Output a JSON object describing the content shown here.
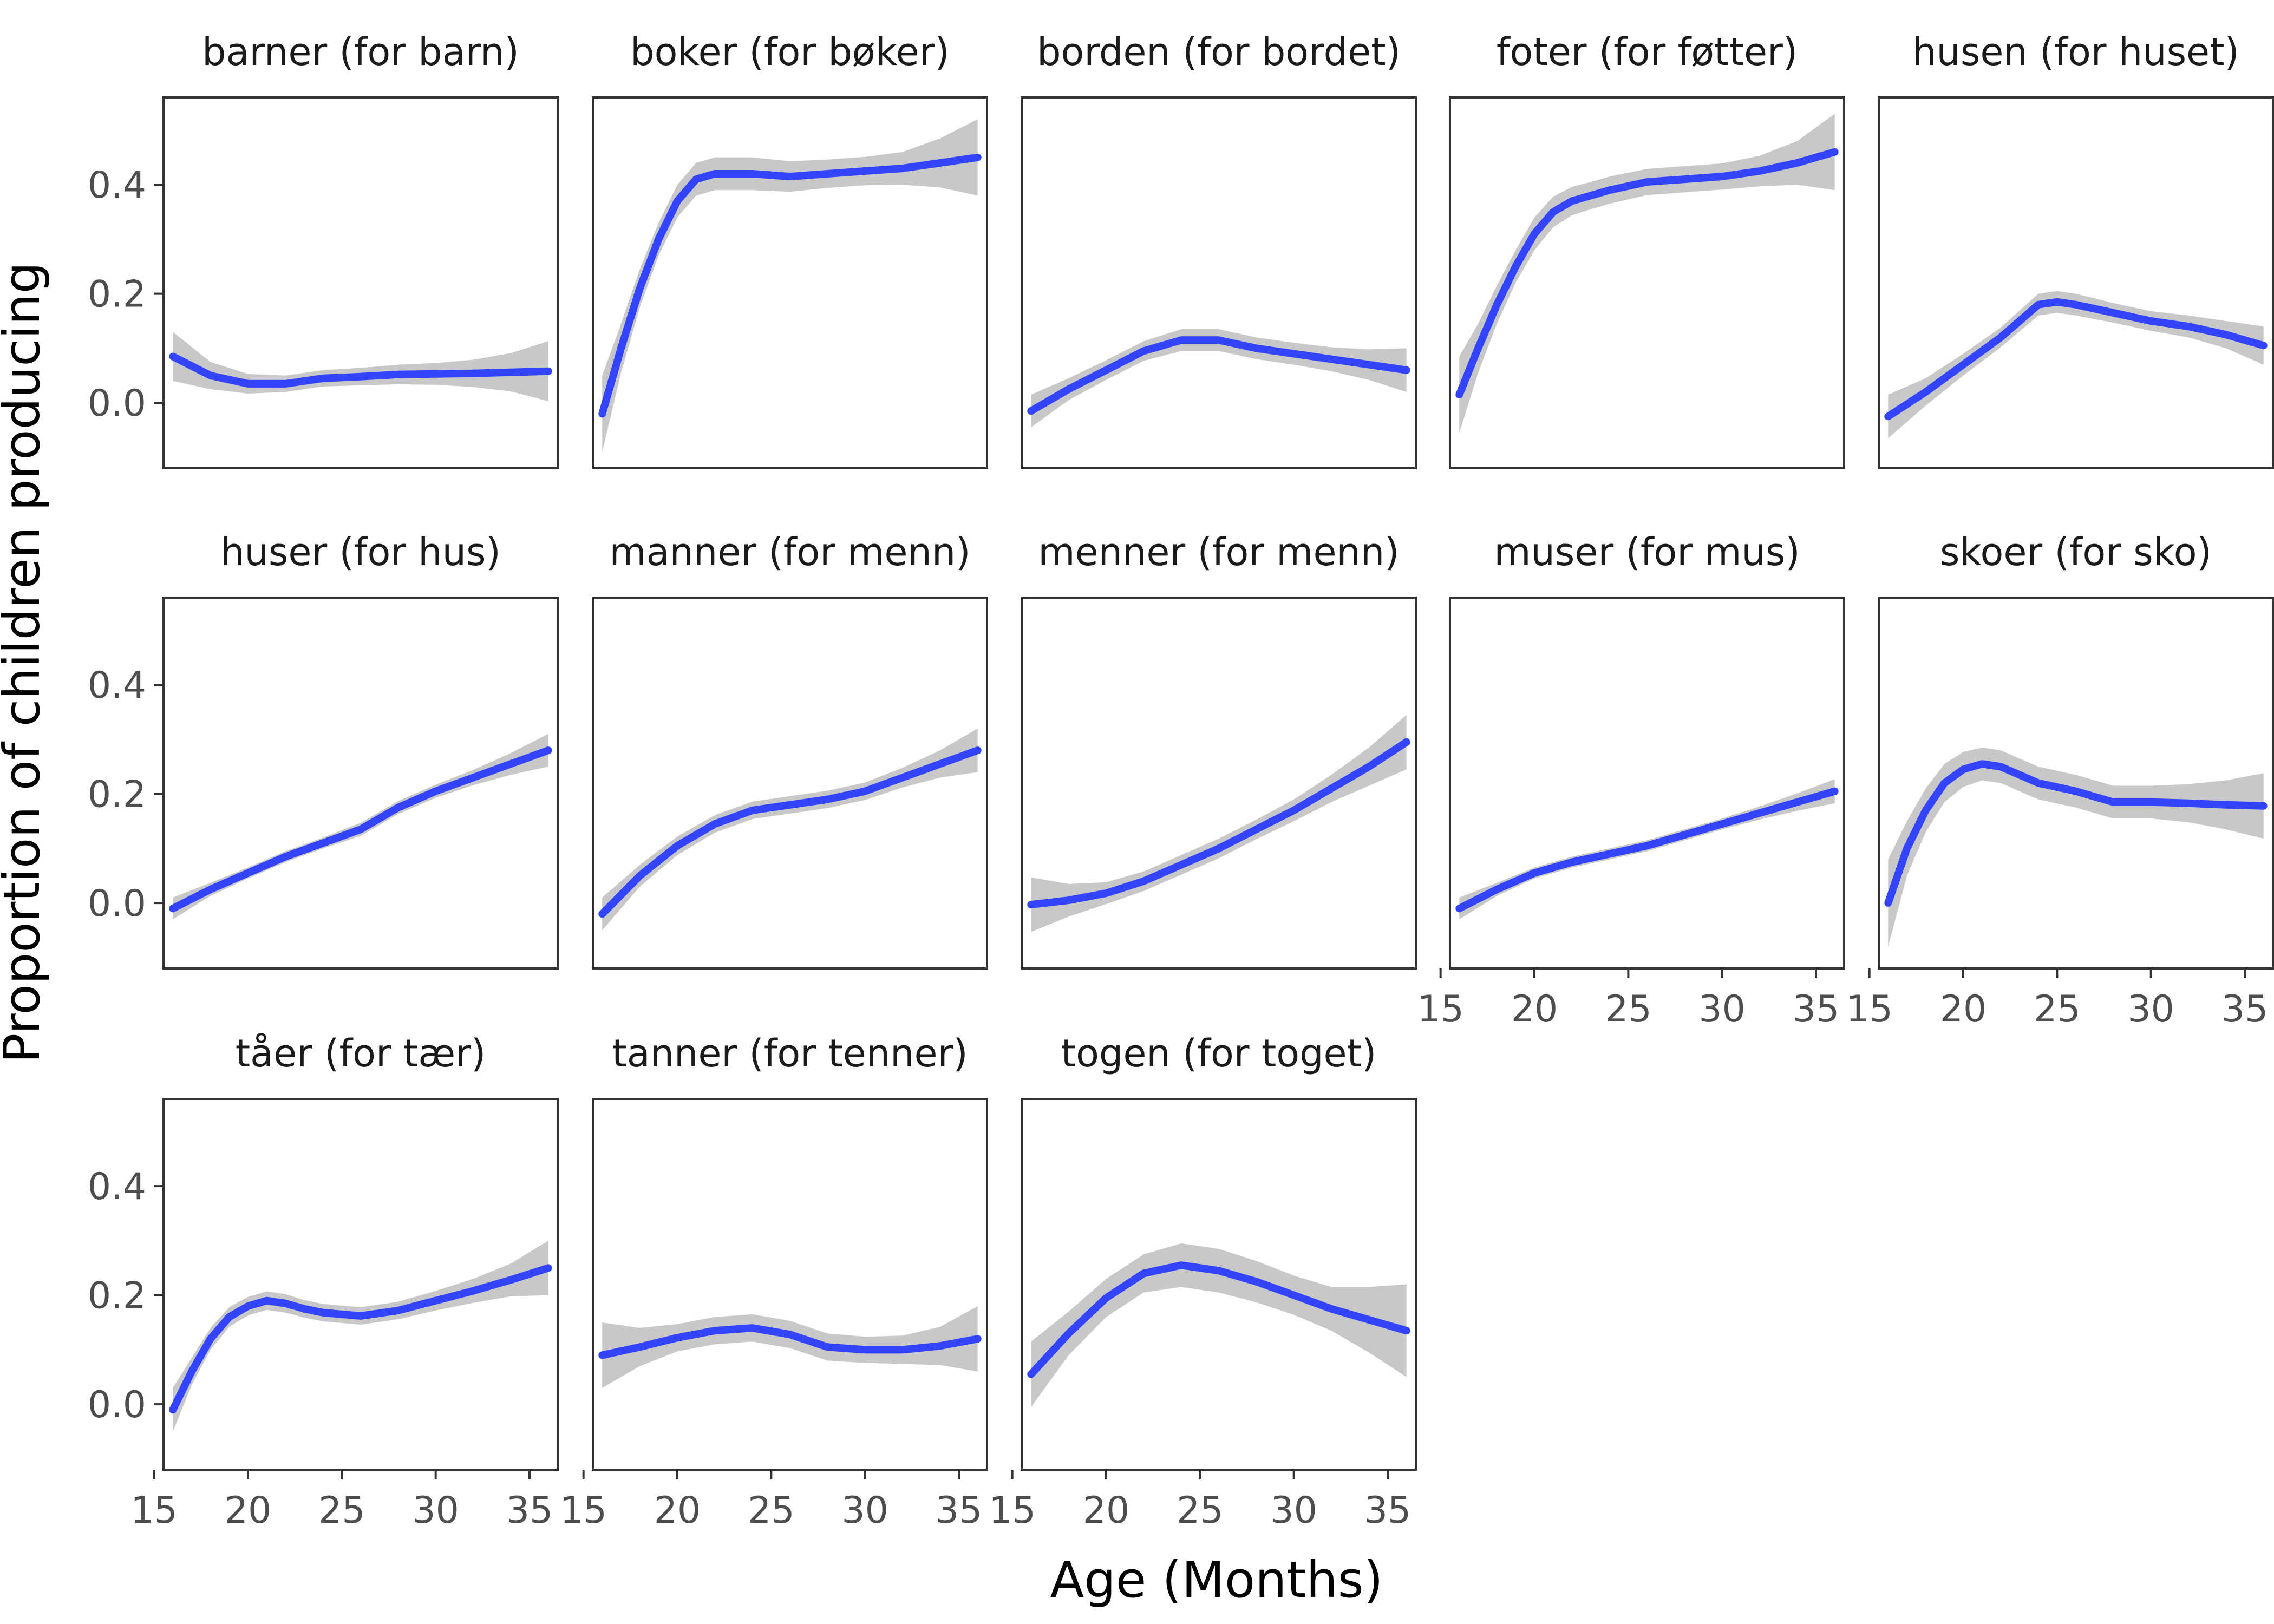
{
  "chart_data": {
    "type": "line",
    "ylabel": "Proportion of children producing",
    "xlabel": "Age (Months)",
    "xlim": [
      15.5,
      36.5
    ],
    "ylim": [
      -0.12,
      0.56
    ],
    "x_ticks": [
      15,
      20,
      25,
      30,
      35
    ],
    "x_tick_labels": [
      "15",
      "20",
      "25",
      "30",
      "35"
    ],
    "y_ticks": [
      0.0,
      0.2,
      0.4
    ],
    "y_tick_labels": [
      "0.0",
      "0.2",
      "0.4"
    ],
    "grid": false,
    "colors": {
      "line": "#3344ff",
      "band": "#c8c8c8"
    },
    "panels": [
      {
        "title": "barner (for barn)",
        "x": [
          16,
          18,
          20,
          22,
          24,
          26,
          28,
          30,
          32,
          34,
          36
        ],
        "y": [
          0.085,
          0.05,
          0.035,
          0.035,
          0.045,
          0.048,
          0.052,
          0.053,
          0.054,
          0.056,
          0.058
        ],
        "se": [
          0.045,
          0.025,
          0.018,
          0.015,
          0.015,
          0.016,
          0.018,
          0.02,
          0.025,
          0.035,
          0.055
        ]
      },
      {
        "title": "boker (for bøker)",
        "x": [
          16,
          17,
          18,
          19,
          20,
          21,
          22,
          23,
          24,
          26,
          28,
          30,
          32,
          34,
          36
        ],
        "y": [
          -0.02,
          0.1,
          0.21,
          0.3,
          0.37,
          0.41,
          0.42,
          0.42,
          0.42,
          0.415,
          0.42,
          0.425,
          0.43,
          0.44,
          0.45
        ],
        "se": [
          0.07,
          0.045,
          0.035,
          0.03,
          0.03,
          0.03,
          0.03,
          0.03,
          0.03,
          0.028,
          0.026,
          0.026,
          0.03,
          0.045,
          0.07
        ]
      },
      {
        "title": "borden (for bordet)",
        "x": [
          16,
          18,
          20,
          22,
          24,
          26,
          28,
          30,
          32,
          34,
          36
        ],
        "y": [
          -0.015,
          0.025,
          0.06,
          0.095,
          0.115,
          0.115,
          0.1,
          0.09,
          0.08,
          0.07,
          0.06
        ],
        "se": [
          0.03,
          0.02,
          0.018,
          0.018,
          0.02,
          0.02,
          0.02,
          0.02,
          0.022,
          0.028,
          0.04
        ]
      },
      {
        "title": "foter (for føtter)",
        "x": [
          16,
          17,
          18,
          19,
          20,
          21,
          22,
          23,
          24,
          26,
          28,
          30,
          32,
          34,
          36
        ],
        "y": [
          0.015,
          0.1,
          0.18,
          0.25,
          0.31,
          0.35,
          0.37,
          0.38,
          0.39,
          0.405,
          0.41,
          0.415,
          0.425,
          0.44,
          0.46
        ],
        "se": [
          0.07,
          0.045,
          0.035,
          0.03,
          0.03,
          0.028,
          0.026,
          0.025,
          0.025,
          0.024,
          0.024,
          0.024,
          0.028,
          0.04,
          0.07
        ]
      },
      {
        "title": "husen (for huset)",
        "x": [
          16,
          18,
          20,
          22,
          24,
          25,
          26,
          28,
          30,
          32,
          34,
          36
        ],
        "y": [
          -0.025,
          0.02,
          0.07,
          0.12,
          0.18,
          0.185,
          0.18,
          0.165,
          0.15,
          0.14,
          0.125,
          0.105
        ],
        "se": [
          0.04,
          0.025,
          0.02,
          0.018,
          0.02,
          0.02,
          0.02,
          0.018,
          0.018,
          0.02,
          0.025,
          0.035
        ]
      },
      {
        "title": "huser (for hus)",
        "x": [
          16,
          18,
          20,
          22,
          24,
          26,
          28,
          30,
          32,
          34,
          36
        ],
        "y": [
          -0.01,
          0.025,
          0.055,
          0.085,
          0.11,
          0.135,
          0.175,
          0.205,
          0.23,
          0.255,
          0.28
        ],
        "se": [
          0.02,
          0.012,
          0.01,
          0.01,
          0.01,
          0.012,
          0.012,
          0.012,
          0.014,
          0.02,
          0.03
        ]
      },
      {
        "title": "manner (for menn)",
        "x": [
          16,
          18,
          20,
          22,
          24,
          26,
          28,
          30,
          32,
          34,
          36
        ],
        "y": [
          -0.02,
          0.05,
          0.105,
          0.145,
          0.17,
          0.18,
          0.19,
          0.205,
          0.23,
          0.255,
          0.28
        ],
        "se": [
          0.03,
          0.02,
          0.017,
          0.016,
          0.016,
          0.016,
          0.016,
          0.016,
          0.018,
          0.025,
          0.04
        ]
      },
      {
        "title": "menner (for menn)",
        "x": [
          16,
          18,
          20,
          22,
          24,
          26,
          28,
          30,
          32,
          34,
          36
        ],
        "y": [
          -0.003,
          0.005,
          0.018,
          0.04,
          0.07,
          0.1,
          0.135,
          0.17,
          0.21,
          0.25,
          0.295
        ],
        "se": [
          0.05,
          0.03,
          0.02,
          0.018,
          0.018,
          0.018,
          0.018,
          0.02,
          0.025,
          0.035,
          0.05
        ]
      },
      {
        "title": "muser (for mus)",
        "x": [
          16,
          18,
          20,
          22,
          24,
          26,
          28,
          30,
          32,
          34,
          36
        ],
        "y": [
          -0.01,
          0.025,
          0.055,
          0.075,
          0.09,
          0.105,
          0.125,
          0.145,
          0.165,
          0.185,
          0.205
        ],
        "se": [
          0.02,
          0.012,
          0.01,
          0.01,
          0.01,
          0.01,
          0.01,
          0.01,
          0.012,
          0.016,
          0.022
        ]
      },
      {
        "title": "skoer (for sko)",
        "x": [
          16,
          17,
          18,
          19,
          20,
          21,
          22,
          23,
          24,
          26,
          28,
          30,
          32,
          34,
          36
        ],
        "y": [
          0.0,
          0.1,
          0.17,
          0.22,
          0.245,
          0.255,
          0.25,
          0.235,
          0.22,
          0.205,
          0.185,
          0.185,
          0.183,
          0.18,
          0.178
        ],
        "se": [
          0.08,
          0.05,
          0.04,
          0.035,
          0.032,
          0.03,
          0.03,
          0.03,
          0.03,
          0.03,
          0.03,
          0.03,
          0.035,
          0.045,
          0.06
        ]
      },
      {
        "title": "tåer (for tær)",
        "x": [
          16,
          17,
          18,
          19,
          20,
          21,
          22,
          23,
          24,
          26,
          28,
          30,
          32,
          34,
          36
        ],
        "y": [
          -0.01,
          0.06,
          0.12,
          0.16,
          0.18,
          0.19,
          0.185,
          0.175,
          0.168,
          0.162,
          0.172,
          0.19,
          0.208,
          0.228,
          0.25
        ],
        "se": [
          0.04,
          0.025,
          0.02,
          0.018,
          0.017,
          0.017,
          0.017,
          0.016,
          0.016,
          0.016,
          0.016,
          0.018,
          0.022,
          0.03,
          0.05
        ]
      },
      {
        "title": "tanner (for tenner)",
        "x": [
          16,
          18,
          20,
          22,
          24,
          26,
          28,
          30,
          32,
          34,
          36
        ],
        "y": [
          0.09,
          0.105,
          0.122,
          0.135,
          0.14,
          0.128,
          0.105,
          0.1,
          0.1,
          0.107,
          0.12
        ],
        "se": [
          0.06,
          0.035,
          0.025,
          0.025,
          0.025,
          0.025,
          0.025,
          0.024,
          0.026,
          0.035,
          0.06
        ]
      },
      {
        "title": "togen (for toget)",
        "x": [
          16,
          18,
          20,
          22,
          24,
          26,
          28,
          30,
          32,
          34,
          36
        ],
        "y": [
          0.055,
          0.13,
          0.195,
          0.24,
          0.255,
          0.245,
          0.225,
          0.2,
          0.175,
          0.155,
          0.135
        ],
        "se": [
          0.06,
          0.04,
          0.035,
          0.035,
          0.04,
          0.04,
          0.038,
          0.036,
          0.04,
          0.06,
          0.085
        ]
      }
    ]
  }
}
